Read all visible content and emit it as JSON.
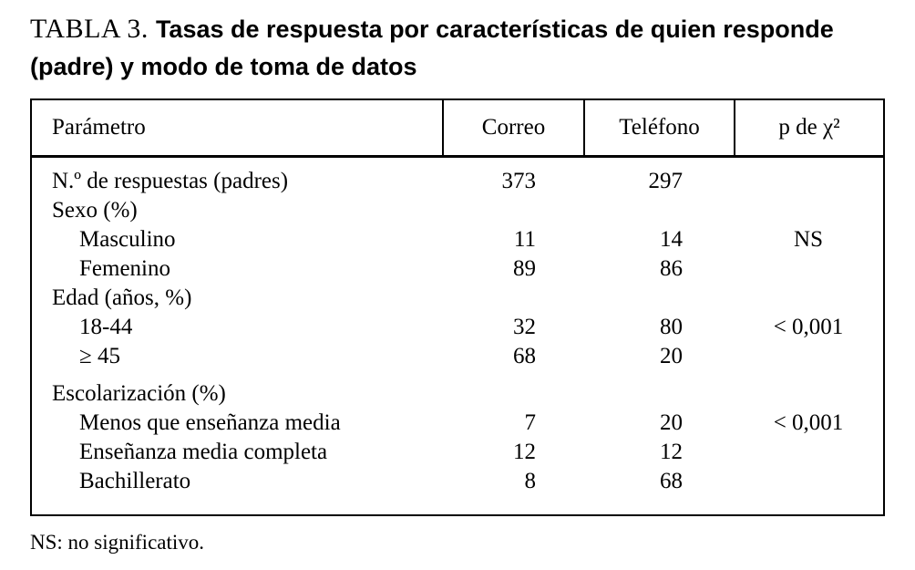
{
  "title": {
    "label": "TABLA 3.",
    "text": "Tasas de respuesta por características de quien responde (padre) y modo de toma de datos"
  },
  "table": {
    "columns": [
      "Parámetro",
      "Correo",
      "Teléfono",
      "p de χ²"
    ],
    "rows": [
      {
        "label": "N.º de respuestas (padres)",
        "indent": 0,
        "spacer": false,
        "correo": "373",
        "telefono": "297",
        "p": ""
      },
      {
        "label": "Sexo (%)",
        "indent": 0,
        "spacer": false,
        "correo": "",
        "telefono": "",
        "p": ""
      },
      {
        "label": "Masculino",
        "indent": 1,
        "spacer": false,
        "correo": "11",
        "telefono": "14",
        "p": "NS"
      },
      {
        "label": "Femenino",
        "indent": 1,
        "spacer": false,
        "correo": "89",
        "telefono": "86",
        "p": ""
      },
      {
        "label": "Edad (años, %)",
        "indent": 0,
        "spacer": false,
        "correo": "",
        "telefono": "",
        "p": ""
      },
      {
        "label": "18-44",
        "indent": 1,
        "spacer": false,
        "correo": "32",
        "telefono": "80",
        "p": "< 0,001"
      },
      {
        "label": "≥ 45",
        "indent": 1,
        "spacer": false,
        "correo": "68",
        "telefono": "20",
        "p": ""
      },
      {
        "label": "Escolarización (%)",
        "indent": 0,
        "spacer": true,
        "correo": "",
        "telefono": "",
        "p": ""
      },
      {
        "label": "Menos que enseñanza media",
        "indent": 1,
        "spacer": false,
        "correo": "7",
        "telefono": "20",
        "p": "< 0,001"
      },
      {
        "label": "Enseñanza media completa",
        "indent": 1,
        "spacer": false,
        "correo": "12",
        "telefono": "12",
        "p": ""
      },
      {
        "label": "Bachillerato",
        "indent": 1,
        "spacer": false,
        "correo": "8",
        "telefono": "68",
        "p": ""
      }
    ],
    "footnote": "NS: no significativo."
  }
}
